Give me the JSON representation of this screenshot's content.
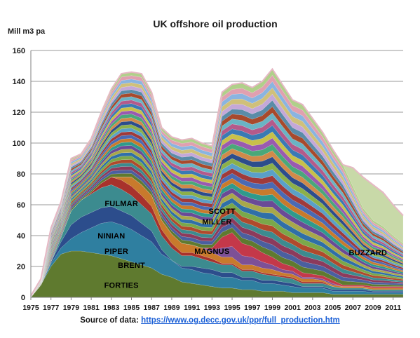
{
  "chart_data": {
    "type": "area",
    "stacked": true,
    "title": "UK offshore oil production",
    "ylabel": "Mill m3 pa",
    "xlabel": "",
    "ylim": [
      0,
      160
    ],
    "yticks": [
      0,
      20,
      40,
      60,
      80,
      100,
      120,
      140,
      160
    ],
    "xlim": [
      1975,
      2012
    ],
    "xticks": [
      "1975",
      "1977",
      "1979",
      "1981",
      "1983",
      "1985",
      "1987",
      "1989",
      "1991",
      "1993",
      "1995",
      "1997",
      "1999",
      "2001",
      "2003",
      "2005",
      "2007",
      "2009",
      "2011"
    ],
    "grid": "horizontal",
    "legend": "none",
    "x": [
      1975,
      1976,
      1977,
      1978,
      1979,
      1980,
      1981,
      1982,
      1983,
      1984,
      1985,
      1986,
      1987,
      1988,
      1989,
      1990,
      1991,
      1992,
      1993,
      1994,
      1995,
      1996,
      1997,
      1998,
      1999,
      2000,
      2001,
      2002,
      2003,
      2004,
      2005,
      2006,
      2007,
      2008,
      2009,
      2010,
      2011,
      2012
    ],
    "total": [
      1,
      12,
      45,
      62,
      90,
      93,
      103,
      120,
      135,
      145,
      146,
      145,
      133,
      110,
      104,
      102,
      103,
      100,
      98,
      133,
      138,
      139,
      136,
      140,
      148,
      138,
      128,
      125,
      116,
      107,
      96,
      86,
      84,
      78,
      73,
      68,
      60,
      53
    ],
    "series": [
      {
        "name": "FORTIES",
        "color": "#5f7a2f",
        "values": [
          0,
          8,
          20,
          28,
          30,
          30,
          29,
          28,
          27,
          25,
          23,
          21,
          19,
          15,
          13,
          10,
          9,
          8,
          7,
          6,
          6,
          5,
          5,
          4,
          4,
          4,
          3,
          3,
          3,
          3,
          2,
          2,
          2,
          2,
          2,
          2,
          2,
          2
        ]
      },
      {
        "name": "BRENT",
        "color": "#2f7fa0",
        "values": [
          0,
          0,
          2,
          4,
          8,
          12,
          16,
          20,
          22,
          22,
          21,
          19,
          17,
          13,
          11,
          9,
          9,
          8,
          8,
          7,
          7,
          6,
          6,
          5,
          5,
          4,
          4,
          3,
          3,
          3,
          2,
          2,
          2,
          2,
          1,
          1,
          1,
          1
        ]
      },
      {
        "name": "PIPER",
        "color": "#2c4d8c",
        "values": [
          0,
          0,
          1,
          4,
          9,
          10,
          10,
          10,
          10,
          9,
          9,
          8,
          7,
          3,
          0,
          1,
          2,
          3,
          3,
          3,
          3,
          2,
          2,
          2,
          2,
          2,
          2,
          1,
          1,
          1,
          1,
          1,
          1,
          1,
          1,
          1,
          1,
          1
        ]
      },
      {
        "name": "NINIAN",
        "color": "#3c8b8f",
        "values": [
          0,
          0,
          0,
          3,
          9,
          11,
          12,
          13,
          14,
          14,
          13,
          12,
          11,
          9,
          8,
          7,
          7,
          6,
          5,
          5,
          5,
          4,
          4,
          4,
          3,
          3,
          3,
          2,
          2,
          2,
          2,
          1,
          1,
          1,
          1,
          1,
          1,
          1
        ]
      },
      {
        "name": "FULMAR",
        "color": "#a8322c",
        "values": [
          0,
          0,
          0,
          0,
          0,
          0,
          1,
          3,
          5,
          6,
          6,
          6,
          5,
          4,
          3,
          2,
          2,
          2,
          2,
          1,
          1,
          1,
          1,
          1,
          1,
          1,
          1,
          1,
          1,
          1,
          0,
          0,
          0,
          0,
          0,
          0,
          0,
          0
        ]
      },
      {
        "name": "MAGNUS",
        "color": "#c87a2c",
        "values": [
          0,
          0,
          0,
          0,
          0,
          0,
          0,
          0,
          0,
          2,
          6,
          7,
          7,
          6,
          6,
          6,
          5,
          5,
          4,
          4,
          4,
          3,
          3,
          3,
          3,
          2,
          2,
          2,
          2,
          1,
          1,
          1,
          1,
          1,
          1,
          1,
          1,
          1
        ]
      },
      {
        "name": "MILLER",
        "color": "#7d5096",
        "values": [
          0,
          0,
          0,
          0,
          0,
          0,
          0,
          0,
          0,
          0,
          0,
          0,
          0,
          0,
          0,
          0,
          0,
          0,
          2,
          6,
          7,
          6,
          5,
          4,
          3,
          2,
          2,
          1,
          1,
          1,
          1,
          0,
          0,
          0,
          0,
          0,
          0,
          0
        ]
      },
      {
        "name": "SCOTT",
        "color": "#c4384a",
        "values": [
          0,
          0,
          0,
          0,
          0,
          0,
          0,
          0,
          0,
          0,
          0,
          0,
          0,
          0,
          0,
          0,
          0,
          0,
          1,
          7,
          9,
          8,
          7,
          6,
          5,
          4,
          3,
          3,
          2,
          2,
          2,
          1,
          1,
          1,
          1,
          1,
          1,
          1
        ]
      },
      {
        "name": "BUZZARD",
        "color": "#c8d9a8",
        "values": [
          0,
          0,
          0,
          0,
          0,
          0,
          0,
          0,
          0,
          0,
          0,
          0,
          0,
          0,
          0,
          0,
          0,
          0,
          0,
          0,
          0,
          0,
          0,
          0,
          0,
          0,
          0,
          0,
          0,
          0,
          0,
          0,
          12,
          20,
          23,
          22,
          20,
          18
        ]
      }
    ],
    "other_fields_palette": [
      "#5f7a2f",
      "#4a5fa0",
      "#8c3a5c",
      "#3c8b8f",
      "#b04a2c",
      "#7aa84a",
      "#2f6fa8",
      "#a8a84a",
      "#6a4a96",
      "#2f9a8c",
      "#c87a2c",
      "#4a6ab4",
      "#a03a3a",
      "#5aa0c8",
      "#8cb04a",
      "#2c4d8c",
      "#d08a4a",
      "#4aa87a",
      "#9a5ab0",
      "#c8c04a",
      "#3a7ab4",
      "#b45a8a",
      "#6ab4c4",
      "#a84a2c",
      "#5a8ca8",
      "#c4a8d8",
      "#d0c07a",
      "#8ab4e0",
      "#e0a0b0",
      "#b0d08a"
    ],
    "annotations": [
      {
        "text": "FORTIES",
        "x": 1984,
        "y": 8
      },
      {
        "text": "BRENT",
        "x": 1985,
        "y": 21
      },
      {
        "text": "PIPER",
        "x": 1983.5,
        "y": 30
      },
      {
        "text": "NINIAN",
        "x": 1983,
        "y": 40
      },
      {
        "text": "FULMAR",
        "x": 1984,
        "y": 61
      },
      {
        "text": "MAGNUS",
        "x": 1993,
        "y": 30
      },
      {
        "text": "MILLER",
        "x": 1993.5,
        "y": 49
      },
      {
        "text": "SCOTT",
        "x": 1994,
        "y": 56
      },
      {
        "text": "BUZZARD",
        "x": 2008.5,
        "y": 29
      }
    ]
  },
  "source": {
    "label": "Source of data:",
    "url_text": "https://www.og.decc.gov.uk/ppr/full_production.htm"
  }
}
